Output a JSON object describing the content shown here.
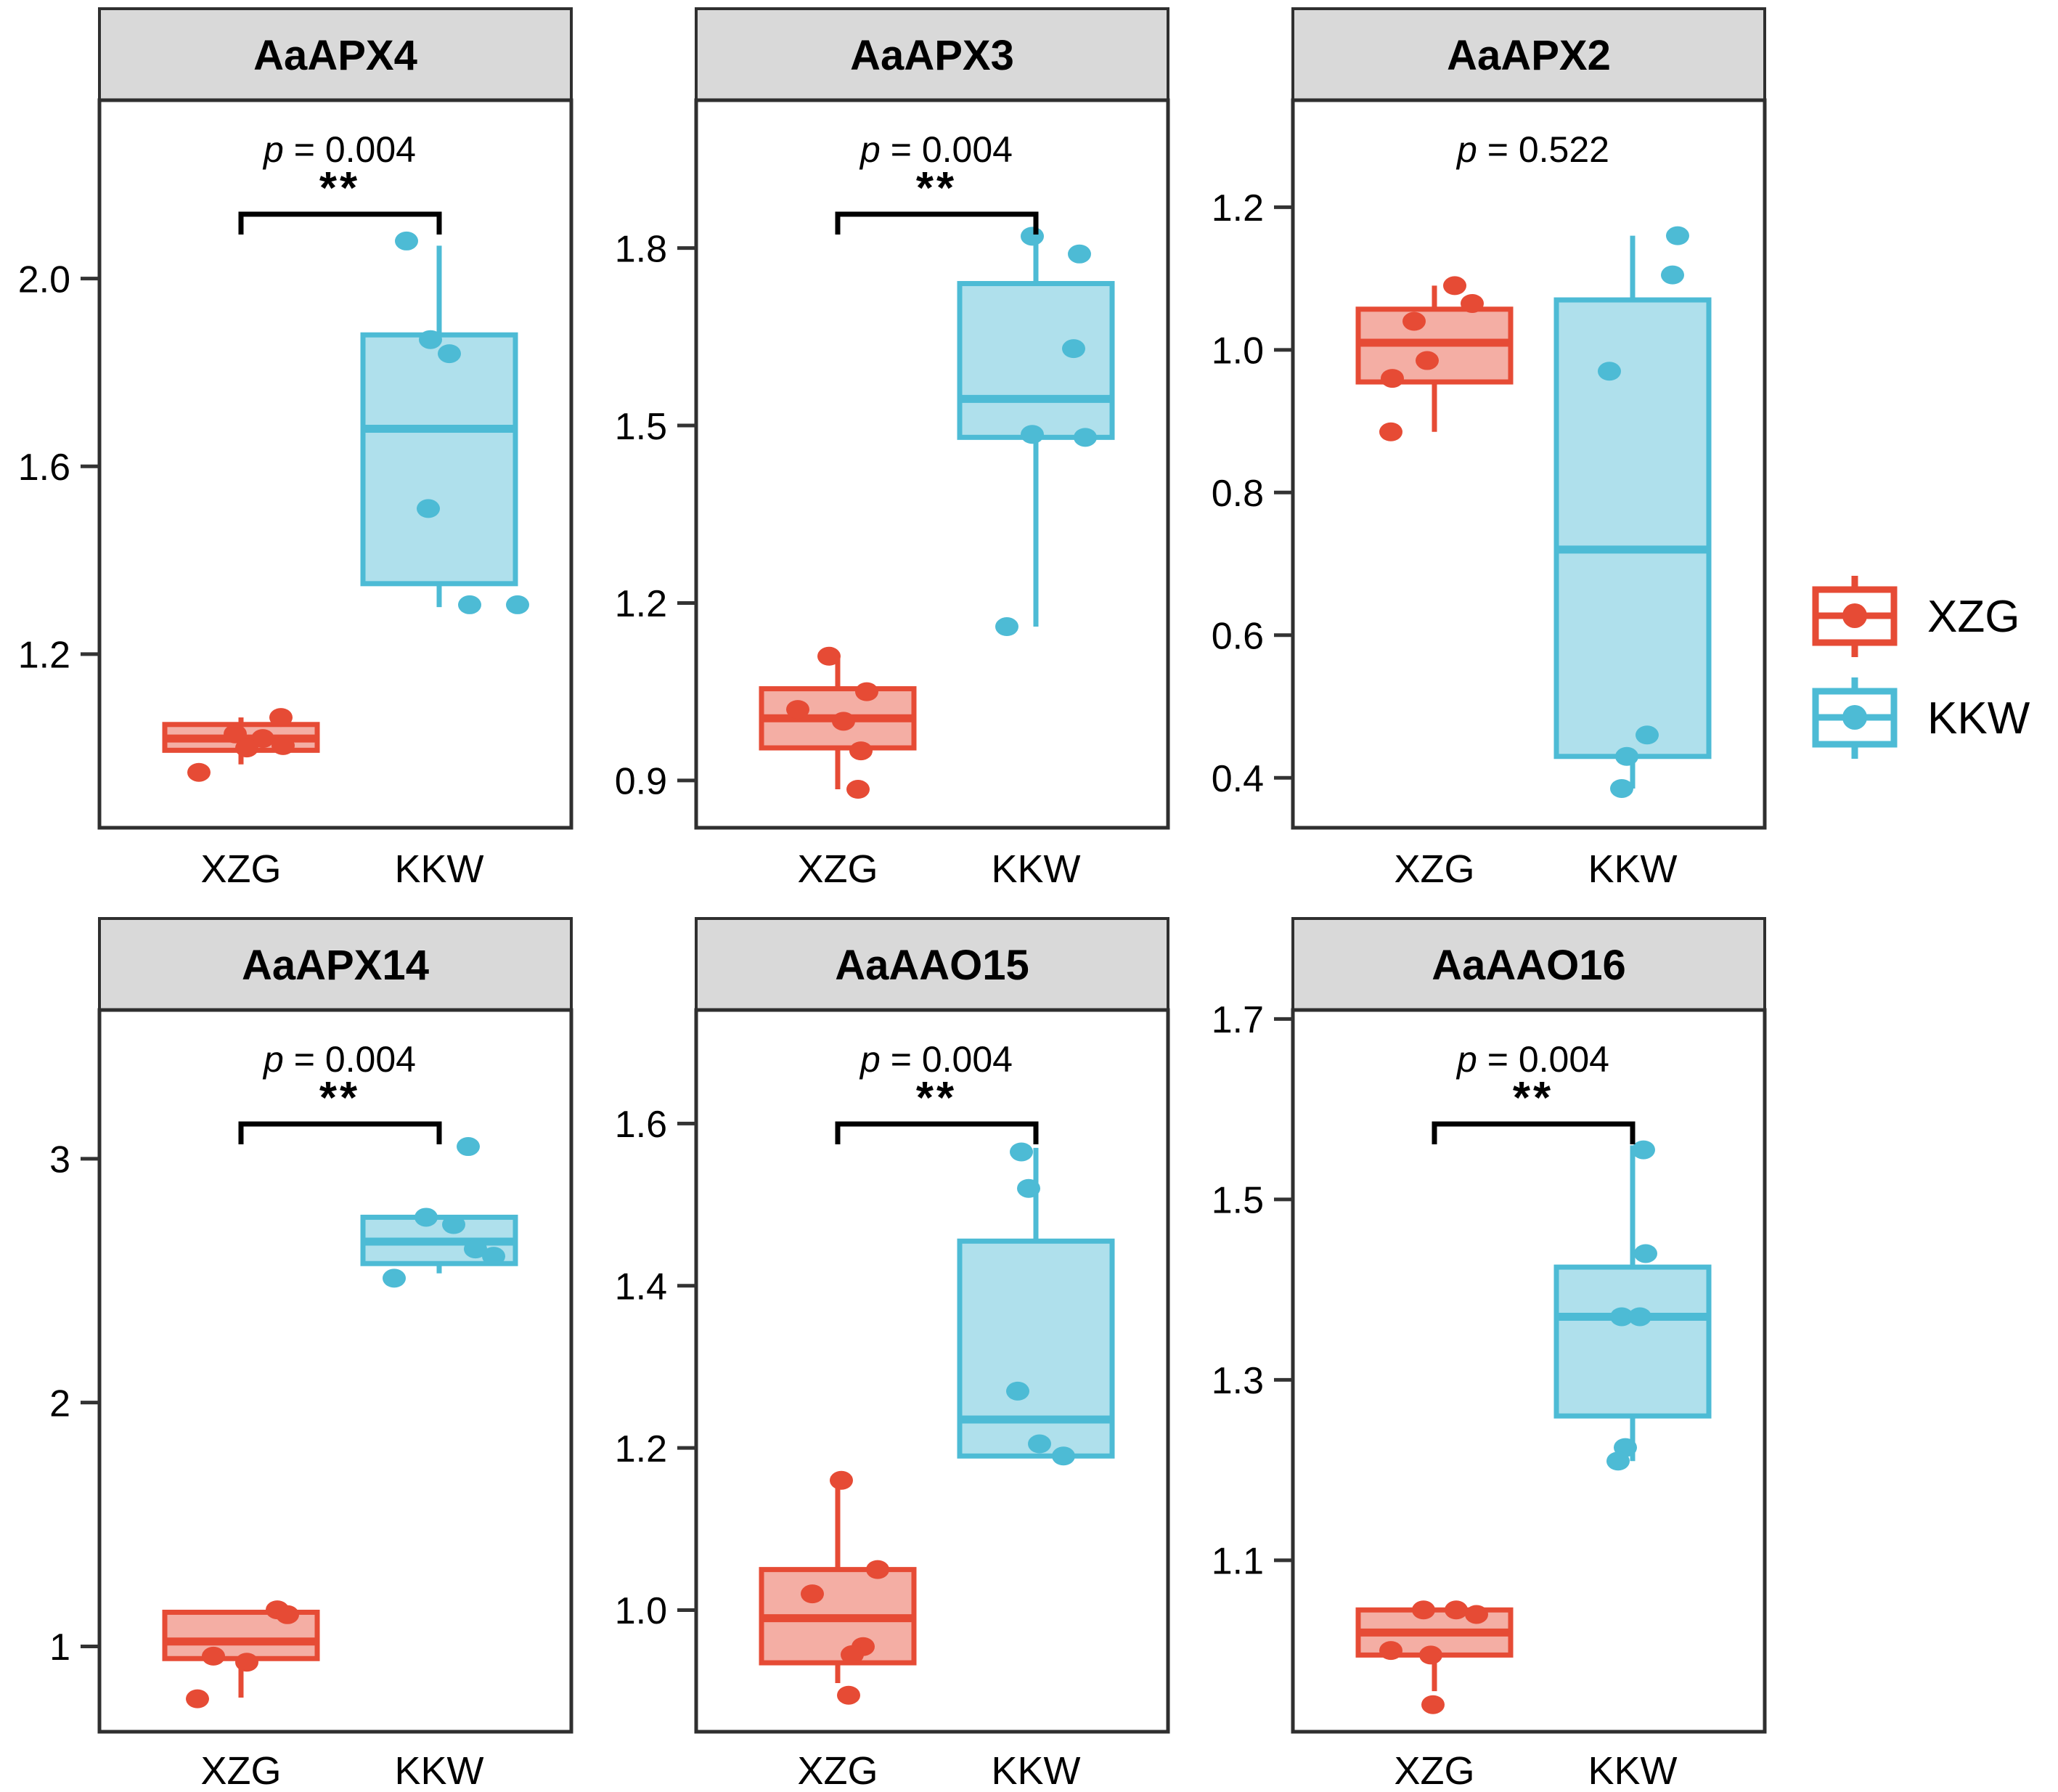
{
  "figure": {
    "groups": [
      "XZG",
      "KKW"
    ],
    "p_symbol": "p",
    "p_eq": " = ",
    "legend_position": "right",
    "legend": {
      "items": [
        {
          "label": "XZG",
          "color": "#E64B35"
        },
        {
          "label": "KKW",
          "color": "#4DBBD5"
        }
      ]
    },
    "colors": {
      "XZG": "#E64B35",
      "KKW": "#4DBBD5",
      "box_fill_opacity": 0.45,
      "strip_bg": "#D9D9D9",
      "border": "#2F2F2F",
      "axis": "#333333",
      "bracket": "#000000"
    }
  },
  "chart_data": [
    {
      "type": "boxplot",
      "title": "AaAPX4",
      "p_value": "0.004",
      "significance": "**",
      "ylim": [
        0.83,
        2.38
      ],
      "yticks": [
        "1.2",
        "1.6",
        "2.0"
      ],
      "groups": [
        {
          "name": "XZG",
          "box": {
            "lo": 0.965,
            "q1": 0.995,
            "med": 1.02,
            "q3": 1.05,
            "hi": 1.065
          },
          "points": [
            [
              1.065,
              55
            ],
            [
              1.03,
              -8
            ],
            [
              1.02,
              30
            ],
            [
              1.005,
              58
            ],
            [
              1.0,
              8
            ],
            [
              0.948,
              -58
            ]
          ]
        },
        {
          "name": "KKW",
          "box": {
            "lo": 1.3,
            "q1": 1.35,
            "med": 1.68,
            "q3": 1.88,
            "hi": 2.07
          },
          "points": [
            [
              2.08,
              -45
            ],
            [
              1.87,
              -12
            ],
            [
              1.84,
              14
            ],
            [
              1.51,
              -15
            ],
            [
              1.305,
              42
            ],
            [
              1.305,
              108
            ]
          ]
        }
      ]
    },
    {
      "type": "boxplot",
      "title": "AaAPX3",
      "p_value": "0.004",
      "significance": "**",
      "ylim": [
        0.82,
        2.05
      ],
      "yticks": [
        "0.9",
        "1.2",
        "1.5",
        "1.8"
      ],
      "groups": [
        {
          "name": "XZG",
          "box": {
            "lo": 0.885,
            "q1": 0.955,
            "med": 1.005,
            "q3": 1.055,
            "hi": 1.11
          },
          "points": [
            [
              1.11,
              -12
            ],
            [
              1.05,
              40
            ],
            [
              1.02,
              -55
            ],
            [
              1.0,
              8
            ],
            [
              0.95,
              32
            ],
            [
              0.885,
              28
            ]
          ]
        },
        {
          "name": "KKW",
          "box": {
            "lo": 1.16,
            "q1": 1.48,
            "med": 1.545,
            "q3": 1.74,
            "hi": 1.82
          },
          "points": [
            [
              1.82,
              -5
            ],
            [
              1.79,
              60
            ],
            [
              1.63,
              52
            ],
            [
              1.485,
              -5
            ],
            [
              1.48,
              68
            ],
            [
              1.16,
              -40
            ]
          ]
        }
      ]
    },
    {
      "type": "boxplot",
      "title": "AaAPX2",
      "p_value": "0.522",
      "significance": "",
      "ylim": [
        0.33,
        1.35
      ],
      "yticks": [
        "0.4",
        "0.6",
        "0.8",
        "1.0",
        "1.2"
      ],
      "groups": [
        {
          "name": "XZG",
          "box": {
            "lo": 0.885,
            "q1": 0.955,
            "med": 1.01,
            "q3": 1.057,
            "hi": 1.09
          },
          "points": [
            [
              1.09,
              28
            ],
            [
              1.065,
              52
            ],
            [
              1.04,
              -28
            ],
            [
              0.985,
              -10
            ],
            [
              0.96,
              -58
            ],
            [
              0.885,
              -60
            ]
          ]
        },
        {
          "name": "KKW",
          "box": {
            "lo": 0.385,
            "q1": 0.43,
            "med": 0.72,
            "q3": 1.07,
            "hi": 1.16
          },
          "points": [
            [
              1.16,
              62
            ],
            [
              1.105,
              55
            ],
            [
              0.97,
              -32
            ],
            [
              0.46,
              20
            ],
            [
              0.43,
              -8
            ],
            [
              0.385,
              -15
            ]
          ]
        }
      ]
    },
    {
      "type": "boxplot",
      "title": "AaAPX14",
      "p_value": "0.004",
      "significance": "**",
      "ylim": [
        0.65,
        3.61
      ],
      "yticks": [
        "1",
        "2",
        "3"
      ],
      "groups": [
        {
          "name": "XZG",
          "box": {
            "lo": 0.79,
            "q1": 0.95,
            "med": 1.02,
            "q3": 1.14,
            "hi": 1.15
          },
          "points": [
            [
              1.15,
              50
            ],
            [
              1.13,
              64
            ],
            [
              0.96,
              -38
            ],
            [
              0.935,
              8
            ],
            [
              0.785,
              -60
            ]
          ]
        },
        {
          "name": "KKW",
          "box": {
            "lo": 2.53,
            "q1": 2.57,
            "med": 2.66,
            "q3": 2.76,
            "hi": 2.76
          },
          "points": [
            [
              3.05,
              40
            ],
            [
              2.76,
              -18
            ],
            [
              2.73,
              20
            ],
            [
              2.63,
              50
            ],
            [
              2.6,
              75
            ],
            [
              2.51,
              -62
            ]
          ]
        }
      ]
    },
    {
      "type": "boxplot",
      "title": "AaAAO15",
      "p_value": "0.004",
      "significance": "**",
      "ylim": [
        0.85,
        1.74
      ],
      "yticks": [
        "1.0",
        "1.2",
        "1.4",
        "1.6"
      ],
      "groups": [
        {
          "name": "XZG",
          "box": {
            "lo": 0.91,
            "q1": 0.935,
            "med": 0.99,
            "q3": 1.05,
            "hi": 1.16
          },
          "points": [
            [
              1.16,
              5
            ],
            [
              1.05,
              55
            ],
            [
              1.02,
              -35
            ],
            [
              0.955,
              35
            ],
            [
              0.945,
              20
            ],
            [
              0.895,
              15
            ]
          ]
        },
        {
          "name": "KKW",
          "box": {
            "lo": 1.19,
            "q1": 1.19,
            "med": 1.235,
            "q3": 1.455,
            "hi": 1.57
          },
          "points": [
            [
              1.565,
              -20
            ],
            [
              1.52,
              -10
            ],
            [
              1.27,
              -25
            ],
            [
              1.205,
              5
            ],
            [
              1.19,
              38
            ]
          ]
        }
      ]
    },
    {
      "type": "boxplot",
      "title": "AaAAO16",
      "p_value": "0.004",
      "significance": "**",
      "ylim": [
        0.91,
        1.71
      ],
      "yticks": [
        "1.1",
        "1.3",
        "1.5",
        "1.7"
      ],
      "groups": [
        {
          "name": "XZG",
          "box": {
            "lo": 0.955,
            "q1": 0.995,
            "med": 1.02,
            "q3": 1.045,
            "hi": 1.045
          },
          "points": [
            [
              1.045,
              -15
            ],
            [
              1.045,
              30
            ],
            [
              1.04,
              58
            ],
            [
              1.0,
              -60
            ],
            [
              0.995,
              -5
            ],
            [
              0.94,
              -2
            ]
          ]
        },
        {
          "name": "KKW",
          "box": {
            "lo": 1.21,
            "q1": 1.26,
            "med": 1.37,
            "q3": 1.425,
            "hi": 1.56
          },
          "points": [
            [
              1.555,
              15
            ],
            [
              1.44,
              18
            ],
            [
              1.37,
              -15
            ],
            [
              1.37,
              10
            ],
            [
              1.225,
              -10
            ],
            [
              1.21,
              -20
            ]
          ]
        }
      ]
    }
  ]
}
